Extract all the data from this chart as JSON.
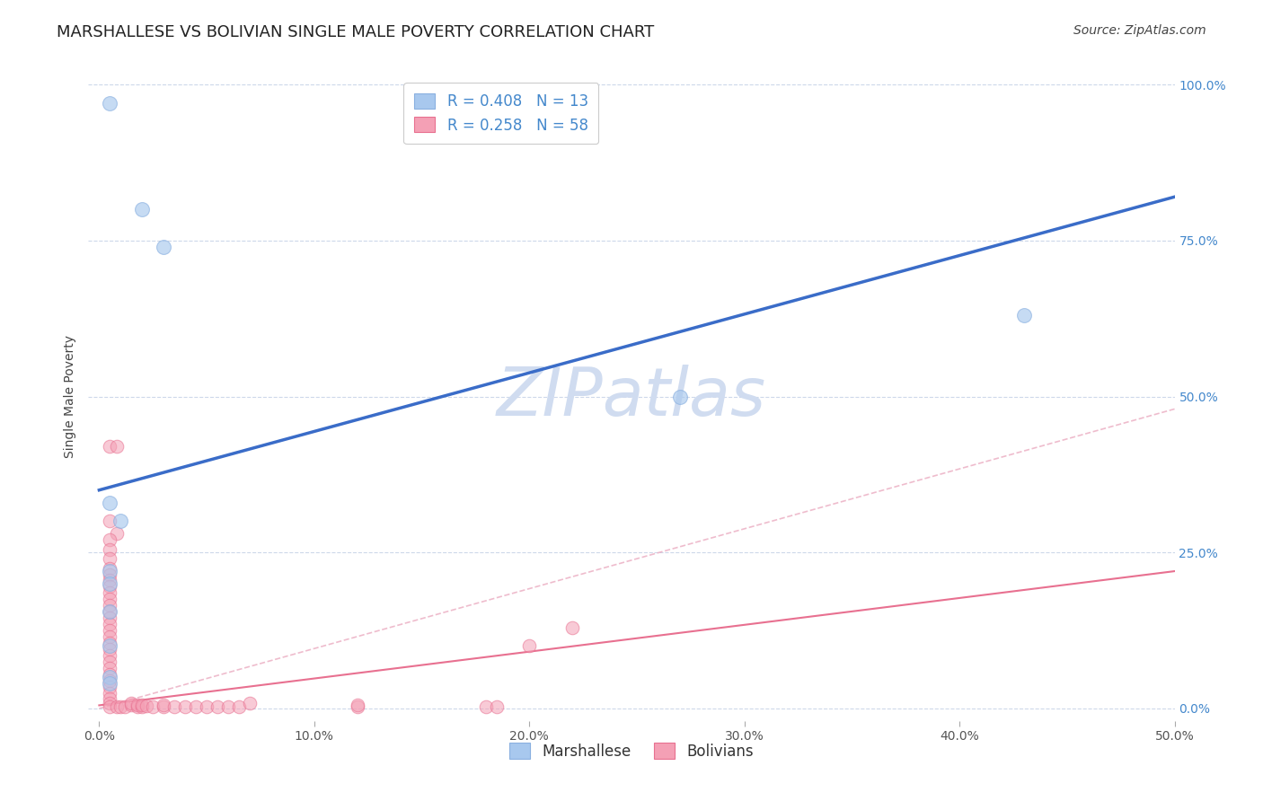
{
  "title": "MARSHALLESE VS BOLIVIAN SINGLE MALE POVERTY CORRELATION CHART",
  "source": "Source: ZipAtlas.com",
  "xlabel_ticks": [
    "0.0%",
    "10.0%",
    "20.0%",
    "30.0%",
    "40.0%",
    "50.0%"
  ],
  "xlabel_vals": [
    0.0,
    0.1,
    0.2,
    0.3,
    0.4,
    0.5
  ],
  "ylabel": "Single Male Poverty",
  "ylabel_ticks": [
    "0.0%",
    "25.0%",
    "50.0%",
    "75.0%",
    "100.0%"
  ],
  "ylabel_vals": [
    0.0,
    0.25,
    0.5,
    0.75,
    1.0
  ],
  "xlim": [
    -0.005,
    0.5
  ],
  "ylim": [
    -0.02,
    1.02
  ],
  "marshallese_scatter": [
    [
      0.005,
      0.97
    ],
    [
      0.02,
      0.8
    ],
    [
      0.03,
      0.74
    ],
    [
      0.005,
      0.33
    ],
    [
      0.01,
      0.3
    ],
    [
      0.005,
      0.22
    ],
    [
      0.005,
      0.2
    ],
    [
      0.005,
      0.155
    ],
    [
      0.005,
      0.1
    ],
    [
      0.005,
      0.05
    ],
    [
      0.005,
      0.04
    ],
    [
      0.27,
      0.5
    ],
    [
      0.43,
      0.63
    ]
  ],
  "bolivian_scatter": [
    [
      0.005,
      0.42
    ],
    [
      0.008,
      0.42
    ],
    [
      0.005,
      0.3
    ],
    [
      0.008,
      0.28
    ],
    [
      0.005,
      0.27
    ],
    [
      0.005,
      0.255
    ],
    [
      0.005,
      0.24
    ],
    [
      0.005,
      0.225
    ],
    [
      0.005,
      0.215
    ],
    [
      0.005,
      0.205
    ],
    [
      0.005,
      0.195
    ],
    [
      0.005,
      0.185
    ],
    [
      0.005,
      0.175
    ],
    [
      0.005,
      0.165
    ],
    [
      0.005,
      0.155
    ],
    [
      0.005,
      0.145
    ],
    [
      0.005,
      0.135
    ],
    [
      0.005,
      0.125
    ],
    [
      0.005,
      0.115
    ],
    [
      0.005,
      0.105
    ],
    [
      0.005,
      0.095
    ],
    [
      0.005,
      0.085
    ],
    [
      0.005,
      0.075
    ],
    [
      0.005,
      0.065
    ],
    [
      0.005,
      0.055
    ],
    [
      0.005,
      0.045
    ],
    [
      0.005,
      0.035
    ],
    [
      0.005,
      0.025
    ],
    [
      0.005,
      0.015
    ],
    [
      0.005,
      0.008
    ],
    [
      0.005,
      0.003
    ],
    [
      0.008,
      0.003
    ],
    [
      0.01,
      0.003
    ],
    [
      0.012,
      0.003
    ],
    [
      0.015,
      0.005
    ],
    [
      0.015,
      0.008
    ],
    [
      0.018,
      0.003
    ],
    [
      0.018,
      0.006
    ],
    [
      0.02,
      0.003
    ],
    [
      0.02,
      0.006
    ],
    [
      0.022,
      0.004
    ],
    [
      0.025,
      0.003
    ],
    [
      0.03,
      0.003
    ],
    [
      0.03,
      0.006
    ],
    [
      0.035,
      0.003
    ],
    [
      0.04,
      0.003
    ],
    [
      0.045,
      0.003
    ],
    [
      0.05,
      0.003
    ],
    [
      0.055,
      0.003
    ],
    [
      0.06,
      0.003
    ],
    [
      0.065,
      0.003
    ],
    [
      0.07,
      0.008
    ],
    [
      0.12,
      0.003
    ],
    [
      0.12,
      0.006
    ],
    [
      0.18,
      0.003
    ],
    [
      0.185,
      0.003
    ],
    [
      0.2,
      0.1
    ],
    [
      0.22,
      0.13
    ]
  ],
  "marshallese_line": {
    "x": [
      0.0,
      0.5
    ],
    "y": [
      0.35,
      0.82
    ]
  },
  "bolivian_line": {
    "x": [
      0.0,
      0.5
    ],
    "y": [
      0.005,
      0.22
    ]
  },
  "bolivian_dashed_line": {
    "x": [
      0.0,
      0.5
    ],
    "y": [
      0.0,
      0.48
    ]
  },
  "scatter_color_marshallese": "#a8c8ee",
  "scatter_color_bolivian": "#f4a0b5",
  "scatter_edge_marshallese": "#8ab0e0",
  "scatter_edge_bolivian": "#e87090",
  "line_color_marshallese": "#3a6cc8",
  "line_color_bolivian": "#e87090",
  "dashed_line_color": "#e8a0b8",
  "background_color": "#ffffff",
  "grid_color": "#c8d4e8",
  "watermark_text": "ZIPatlas",
  "watermark_color": "#d0dcf0",
  "title_fontsize": 13,
  "axis_label_fontsize": 10,
  "tick_fontsize": 10,
  "legend_fontsize": 12,
  "source_fontsize": 10,
  "legend1_label1": "R = 0.408   N = 13",
  "legend1_label2": "R = 0.258   N = 58",
  "legend2_label1": "Marshallese",
  "legend2_label2": "Bolivians"
}
